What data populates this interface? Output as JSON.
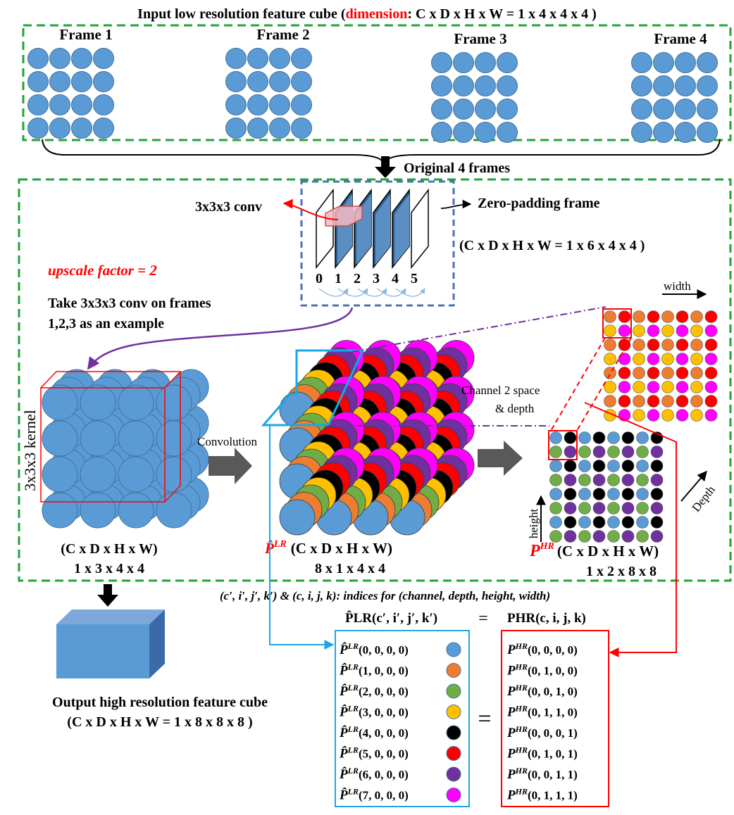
{
  "top_section": {
    "title_prefix": "Input low resolution feature cube (",
    "title_dim_word": "dimension",
    "title_suffix": ": C x D x H x W = 1 x 4 x 4 x 4 )",
    "frames": [
      "Frame 1",
      "Frame 2",
      "Frame 3",
      "Frame 4"
    ],
    "arrow_label": "Original 4 frames"
  },
  "conv_section": {
    "conv_label": "3x3x3 conv",
    "zero_padding_label": "Zero-padding frame",
    "padded_dims": "(C x D x H x W = 1 x 6 x 4 x 4 )",
    "frame_indices": [
      "0",
      "1",
      "2",
      "3",
      "4",
      "5"
    ],
    "upscale_label": "upscale factor = 2",
    "example_line1": "Take 3x3x3 conv on frames",
    "example_line2": "1,2,3 as an example"
  },
  "kernel_cube": {
    "kernel_label": "3x3x3 kernel",
    "dims_line1": "(C x D x H x W)",
    "dims_line2": "1 x 3 x 4 x 4"
  },
  "conv_arrow_label": "Convolution",
  "plr_cube": {
    "symbol": "P̂",
    "superscript": "LR",
    "dims_line1": "(C x D x H x W)",
    "dims_line2": "8 x 1 x 4 x 4"
  },
  "phr": {
    "channel_label_line1": "Channel 2 space",
    "channel_label_line2": "& depth",
    "width_label": "width",
    "height_label": "height",
    "depth_label": "Depth",
    "symbol": "P",
    "superscript": "HR",
    "dims_line1": "(C x D x H x W)",
    "dims_line2": "1 x 2 x 8 x 8"
  },
  "indices_note": "(c′, i′, j′, k′) & (c, i, j, k):  indices for (channel, depth, height, width)",
  "mapping": {
    "left_header": "P̂LR(c′, i′, j′, k′)",
    "eq_sign": "=",
    "right_header": "PHR(c, i, j, k)",
    "left_rows": [
      "(0, 0, 0, 0)",
      "(1, 0, 0, 0)",
      "(2, 0, 0, 0)",
      "(3, 0, 0, 0)",
      "(4, 0, 0, 0)",
      "(5, 0, 0, 0)",
      "(6, 0, 0, 0)",
      "(7, 0, 0, 0)"
    ],
    "right_rows": [
      "(0, 0, 0, 0)",
      "(0, 1, 0, 0)",
      "(0, 0, 1, 0)",
      "(0, 1, 1, 0)",
      "(0, 0, 0, 1)",
      "(0, 1, 0, 1)",
      "(0, 0, 1, 1)",
      "(0, 1, 1, 1)"
    ],
    "row_colors": [
      "#5b9bd5",
      "#ed7d31",
      "#70ad47",
      "#ffc000",
      "#000000",
      "#ff0000",
      "#7030a0",
      "#ff00ff"
    ]
  },
  "output": {
    "label_line1": "Output high resolution feature cube",
    "label_line2": "(C x D x H x W = 1 x 8 x 8 x 8 )"
  },
  "colors": {
    "blue": "#5b9bd5",
    "orange": "#ed7d31",
    "green": "#70ad47",
    "yellow": "#ffc000",
    "black": "#000000",
    "red": "#ff0000",
    "purple": "#7030a0",
    "magenta": "#ff00ff",
    "green_dash": "#21a33a",
    "blue_dash": "#4a72b8",
    "cyan": "#1aa7e4"
  }
}
